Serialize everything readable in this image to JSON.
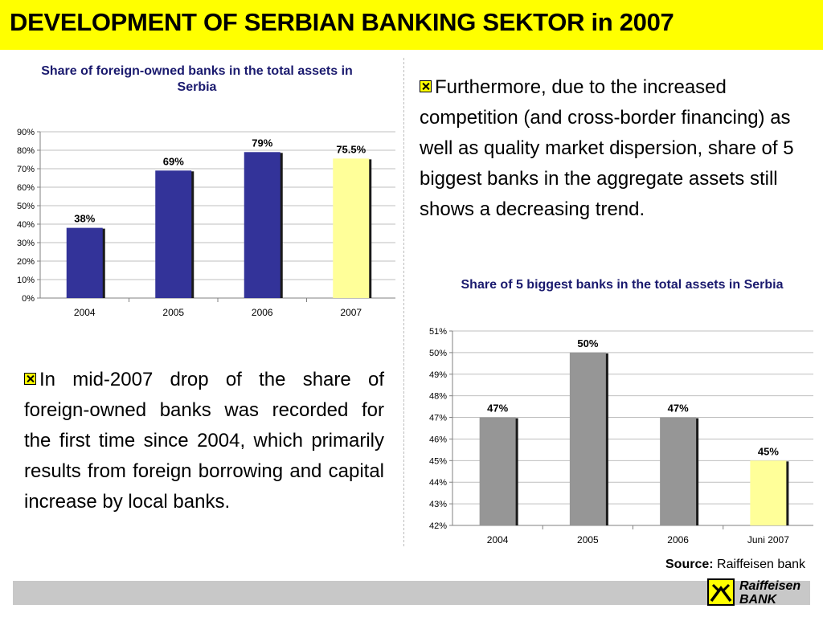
{
  "slide": {
    "title": "DEVELOPMENT OF SERBIAN BANKING SEKTOR in 2007",
    "para1": "Furthermore, due to the increased competition (and cross-border financing) as well as quality market dispersion, share of 5 biggest banks in the aggregate assets still shows a decreasing trend.",
    "para2": "In mid-2007 drop of the share of foreign-owned banks was recorded for the first time since 2004, which primarily results from foreign borrowing and capital increase by local banks.",
    "source_label": "Source:",
    "source_text": "Raiffeisen bank",
    "logo_line1": "Raiffeisen",
    "logo_line2": "BANK",
    "logo_icon": "raiffeisen-gable-cross-icon"
  },
  "colors": {
    "title_bg": "#ffff00",
    "bar_blue": "#333399",
    "bar_gray": "#969696",
    "bar_highlight": "#ffff99",
    "chart_title": "#1a1a6e",
    "footer": "#c8c8c8"
  },
  "chart_data": [
    {
      "type": "bar",
      "title": "Share of foreign-owned banks in the total assets in Serbia",
      "categories": [
        "2004",
        "2005",
        "2006",
        "2007"
      ],
      "values": [
        38,
        69,
        79,
        75.5
      ],
      "data_labels": [
        "38%",
        "69%",
        "79%",
        "75.5%"
      ],
      "ylim": [
        0,
        90
      ],
      "yticks": [
        0,
        10,
        20,
        30,
        40,
        50,
        60,
        70,
        80,
        90
      ],
      "ytick_labels": [
        "0%",
        "10%",
        "20%",
        "30%",
        "40%",
        "50%",
        "60%",
        "70%",
        "80%",
        "90%"
      ],
      "xlabel": "",
      "ylabel": "",
      "grid": true,
      "highlight_index": 3
    },
    {
      "type": "bar",
      "title": "Share of 5 biggest banks in the total assets in Serbia",
      "categories": [
        "2004",
        "2005",
        "2006",
        "Juni 2007"
      ],
      "values": [
        47,
        50,
        47,
        45
      ],
      "data_labels": [
        "47%",
        "50%",
        "47%",
        "45%"
      ],
      "ylim": [
        42,
        51
      ],
      "yticks": [
        42,
        43,
        44,
        45,
        46,
        47,
        48,
        49,
        50,
        51
      ],
      "ytick_labels": [
        "42%",
        "43%",
        "44%",
        "45%",
        "46%",
        "47%",
        "48%",
        "49%",
        "50%",
        "51%"
      ],
      "xlabel": "",
      "ylabel": "",
      "grid": true,
      "highlight_index": 3
    }
  ]
}
